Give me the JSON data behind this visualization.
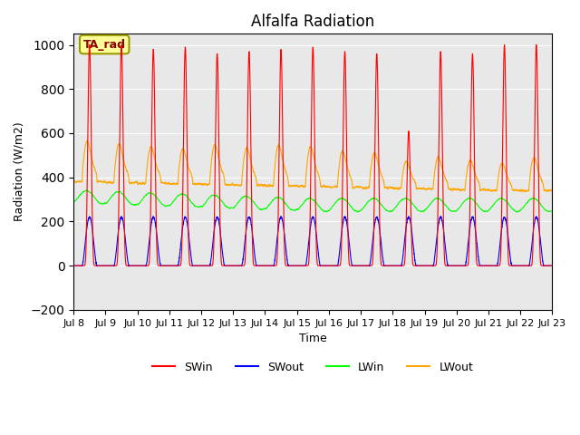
{
  "title": "Alfalfa Radiation",
  "ylabel": "Radiation (W/m2)",
  "xlabel": "Time",
  "ylim": [
    -200,
    1050
  ],
  "yticks": [
    -200,
    0,
    200,
    400,
    600,
    800,
    1000
  ],
  "xtick_labels": [
    "Jul 8",
    "Jul 9",
    "Jul 10",
    "Jul 11",
    "Jul 12",
    "Jul 13",
    "Jul 14",
    "Jul 15",
    "Jul 16",
    "Jul 17",
    "Jul 18",
    "Jul 19",
    "Jul 20",
    "Jul 21",
    "Jul 22",
    "Jul 23"
  ],
  "annotation_text": "TA_rad",
  "annotation_bg": "#ffff99",
  "annotation_border": "#999900",
  "bg_color": "#e8e8e8",
  "grid_color": "white",
  "SWin_color": "red",
  "SWout_color": "blue",
  "LWin_color": "#00ff00",
  "LWout_color": "orange",
  "num_days": 15,
  "points_per_day": 288
}
